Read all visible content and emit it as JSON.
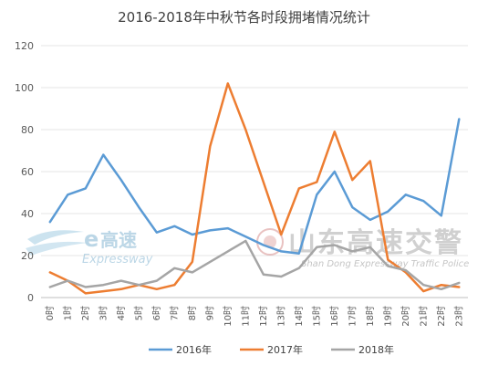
{
  "chart_data": {
    "type": "line",
    "title": "2016-2018年中秋节各时段拥堵情况统计",
    "xlabel": "",
    "ylabel": "",
    "ylim": [
      0,
      120
    ],
    "yticks": [
      0,
      20,
      40,
      60,
      80,
      100,
      120
    ],
    "grid": true,
    "legend": "bottom",
    "categories": [
      "0时",
      "1时",
      "2时",
      "3时",
      "4时",
      "5时",
      "6时",
      "7时",
      "8时",
      "9时",
      "10时",
      "11时",
      "12时",
      "13时",
      "14时",
      "15时",
      "16时",
      "17时",
      "18时",
      "19时",
      "20时",
      "21时",
      "22时",
      "23时"
    ],
    "series": [
      {
        "name": "2016年",
        "color": "#5B9BD5",
        "values": [
          36,
          49,
          52,
          68,
          56,
          43,
          31,
          34,
          30,
          32,
          33,
          29,
          25,
          22,
          21,
          49,
          60,
          43,
          37,
          41,
          49,
          46,
          39,
          85
        ]
      },
      {
        "name": "2017年",
        "color": "#ED7D31",
        "values": [
          12,
          8,
          2,
          3,
          4,
          6,
          4,
          6,
          17,
          72,
          102,
          80,
          55,
          30,
          52,
          55,
          79,
          56,
          65,
          18,
          12,
          3,
          6,
          5
        ]
      },
      {
        "name": "2018年",
        "color": "#A5A5A5",
        "values": [
          5,
          8,
          5,
          6,
          8,
          6,
          8,
          14,
          12,
          17,
          22,
          27,
          11,
          10,
          14,
          24,
          25,
          22,
          24,
          15,
          13,
          6,
          4,
          7
        ]
      }
    ]
  },
  "watermarks": {
    "left_logo_e": "e",
    "left_logo_cn": "高速",
    "left_logo_en": "Expressway",
    "right_logo_cn": "山东高速交警",
    "right_logo_en": "Shan Dong Expressway Traffic Police"
  }
}
